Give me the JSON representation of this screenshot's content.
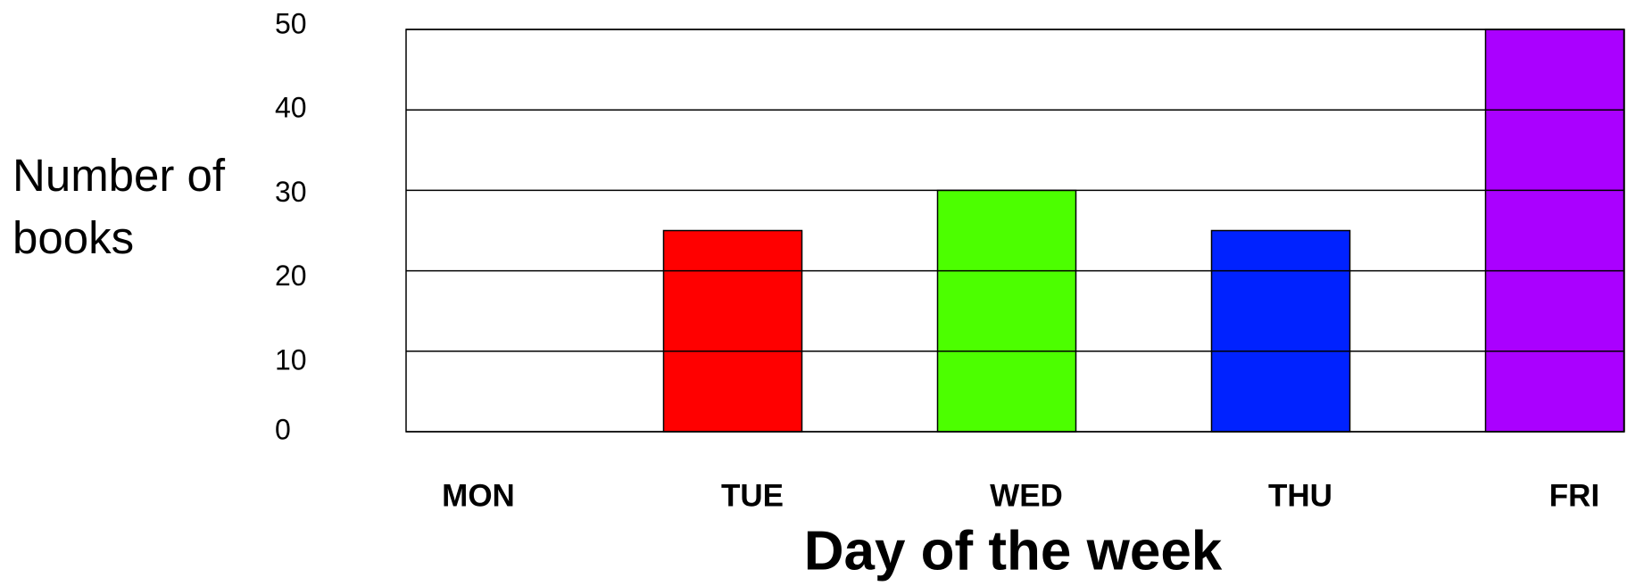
{
  "chart_data": {
    "type": "bar",
    "x_label": "Day of the week",
    "y_label": "Number of books",
    "categories": [
      "MON",
      "TUE",
      "WED",
      "THU",
      "FRI"
    ],
    "values": [
      0,
      25,
      30,
      25,
      50
    ],
    "colors": [
      "#ff0000",
      "#ff0000",
      "#4cff00",
      "#0022ff",
      "#aa00ff"
    ],
    "ylim": [
      0,
      50
    ],
    "yticks": [
      0,
      10,
      20,
      30,
      40,
      50
    ],
    "grid": true
  }
}
